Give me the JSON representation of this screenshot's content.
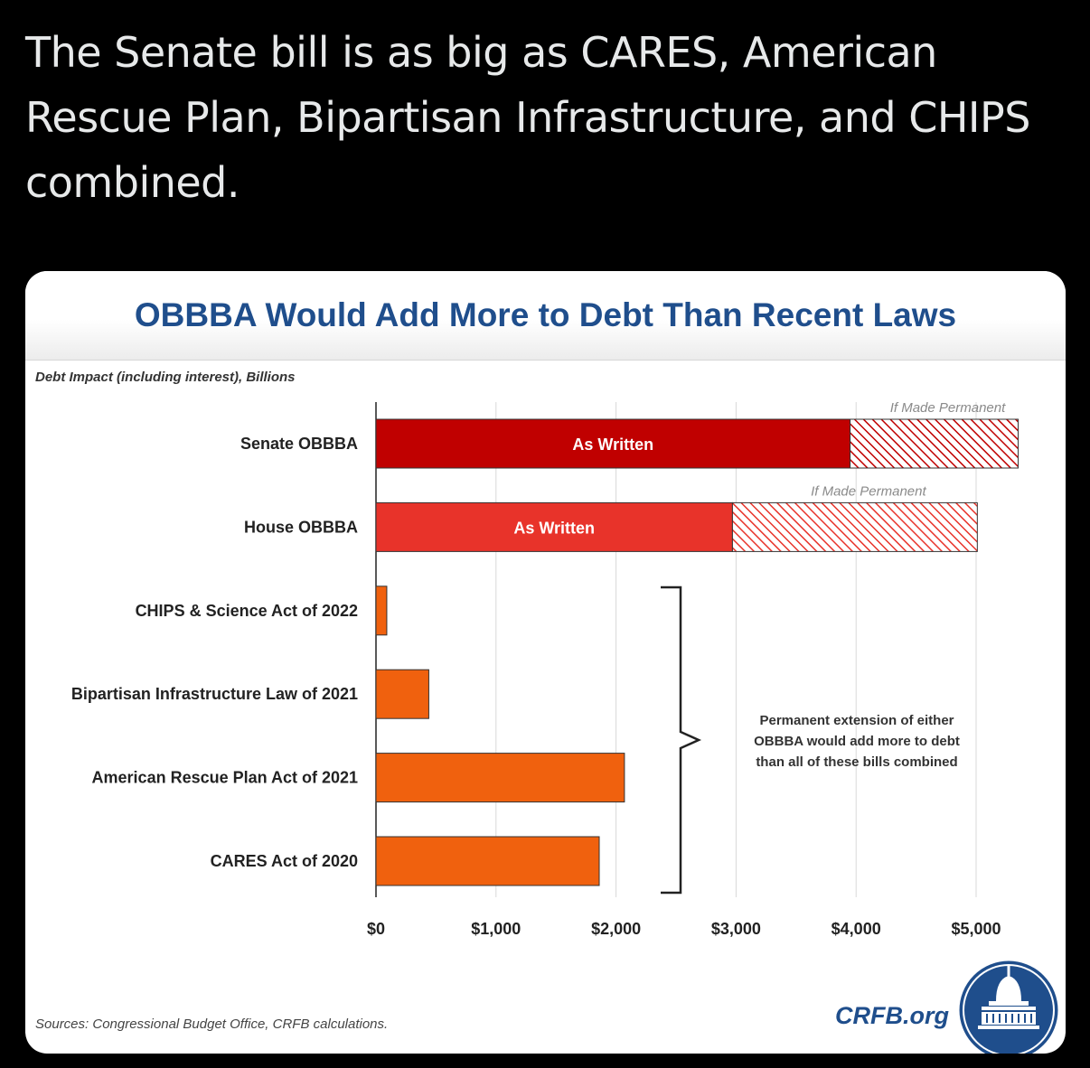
{
  "tweet": {
    "text": "The Senate bill is as big as CARES, American Rescue Plan, Bipartisan Infrastructure, and CHIPS combined."
  },
  "chart_data": {
    "type": "bar",
    "orientation": "horizontal",
    "title": "OBBBA Would Add More to Debt Than Recent Laws",
    "subtitle": "Debt Impact (including interest), Billions",
    "categories": [
      "Senate OBBBA",
      "House OBBBA",
      "CHIPS & Science Act of 2022",
      "Bipartisan Infrastructure Law of 2021",
      "American Rescue Plan Act of 2021",
      "CARES Act of 2020"
    ],
    "series": [
      {
        "name": "As Written",
        "values": [
          3950,
          2970,
          90,
          440,
          2070,
          1860
        ],
        "colors": [
          "#c00000",
          "#e8332a",
          "#f0610e",
          "#f0610e",
          "#f0610e",
          "#f0610e"
        ]
      },
      {
        "name": "If Made Permanent",
        "values": [
          5350,
          5010,
          null,
          null,
          null,
          null
        ],
        "pattern": "hatched"
      }
    ],
    "bar_labels": [
      "As Written",
      "As Written",
      "",
      "",
      "",
      ""
    ],
    "xlim": [
      0,
      5350
    ],
    "x_ticks": [
      0,
      1000,
      2000,
      3000,
      4000,
      5000
    ],
    "x_tick_labels": [
      "$0",
      "$1,000",
      "$2,000",
      "$3,000",
      "$4,000",
      "$5,000"
    ],
    "grid": true,
    "annotation": {
      "lines": [
        "Permanent extension of either",
        "OBBBA would add more to debt",
        "than all of these bills combined"
      ]
    },
    "source": "Sources: Congressional Budget Office, CRFB calculations.",
    "brand": "CRFB.org"
  },
  "colors": {
    "senate": "#c00000",
    "house": "#e8332a",
    "other": "#f0610e",
    "title": "#1f4e8c"
  },
  "icons": {
    "logo": "capitol-dome-seal-icon"
  }
}
